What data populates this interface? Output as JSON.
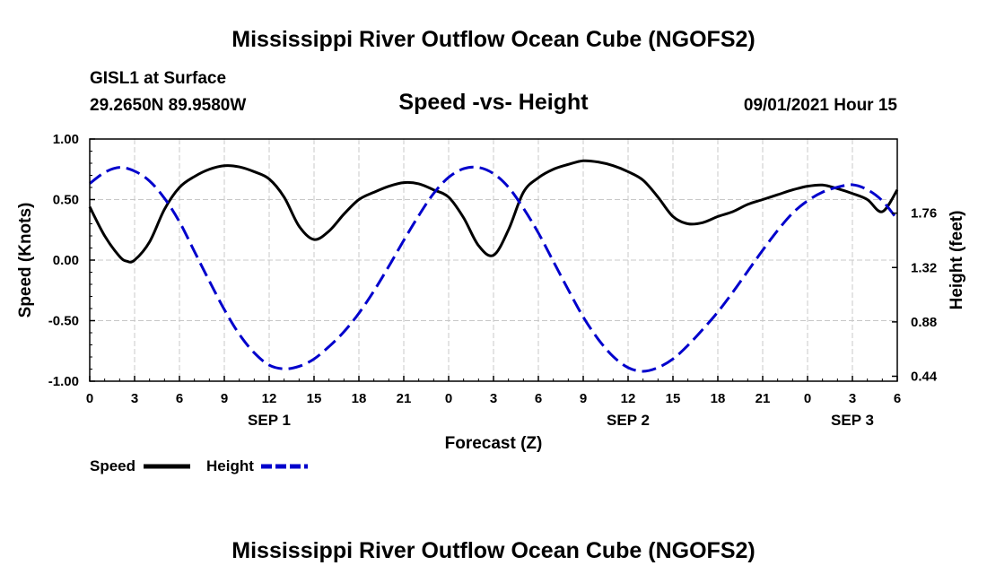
{
  "header": {
    "title": "Mississippi River Outflow Ocean Cube (NGOFS2)",
    "station": "GISL1 at Surface",
    "coords": "29.2650N  89.9580W",
    "subtitle": "Speed -vs- Height",
    "datetime": "09/01/2021 Hour 15",
    "footer_title": "Mississippi River Outflow Ocean Cube (NGOFS2)"
  },
  "colors": {
    "speed": "#000000",
    "height": "#0000cc",
    "grid": "#c8c8c8"
  },
  "chart_data": {
    "type": "line",
    "title": "Speed -vs- Height",
    "xlabel": "Forecast (Z)",
    "ylabel": "Speed (Knots)",
    "y2label": "Height (feet)",
    "xlim": [
      0,
      54
    ],
    "ylim": [
      -1.0,
      1.0
    ],
    "y2lim": [
      0.4,
      2.36
    ],
    "x_tick_values": [
      0,
      3,
      6,
      9,
      12,
      15,
      18,
      21,
      24,
      27,
      30,
      33,
      36,
      39,
      42,
      45,
      48,
      51,
      54
    ],
    "x_tick_labels": [
      "0",
      "3",
      "6",
      "9",
      "12",
      "15",
      "18",
      "21",
      "0",
      "3",
      "6",
      "9",
      "12",
      "15",
      "18",
      "21",
      "0",
      "3",
      "6"
    ],
    "date_labels": [
      {
        "x": 12,
        "label": "SEP 1"
      },
      {
        "x": 36,
        "label": "SEP 2"
      },
      {
        "x": 51,
        "label": "SEP 3"
      }
    ],
    "y_tick_labels": [
      "1.00",
      "0.50",
      "0.00",
      "-0.50",
      "-1.00"
    ],
    "y_tick_values": [
      1.0,
      0.5,
      0.0,
      -0.5,
      -1.0
    ],
    "y2_tick_labels": [
      "0.44",
      "0.88",
      "1.32",
      "1.76"
    ],
    "y2_tick_values": [
      0.44,
      0.88,
      1.32,
      1.76
    ],
    "legend": [
      {
        "name": "Speed",
        "style": "solid"
      },
      {
        "name": "Height",
        "style": "dashed"
      }
    ],
    "series": [
      {
        "name": "Speed",
        "axis": "left",
        "x": [
          0,
          1,
          2,
          2.5,
          3,
          4,
          5,
          6,
          7,
          8,
          9,
          10,
          11,
          12,
          13,
          14,
          15,
          16,
          17,
          18,
          19,
          20,
          21,
          22,
          23,
          24,
          25,
          26,
          27,
          28,
          29,
          30,
          31,
          32,
          33,
          34,
          35,
          36,
          37,
          38,
          39,
          40,
          41,
          42,
          43,
          44,
          45,
          46,
          47,
          48,
          49,
          50,
          51,
          52,
          53,
          54
        ],
        "values": [
          0.44,
          0.2,
          0.03,
          -0.01,
          0.0,
          0.15,
          0.42,
          0.6,
          0.69,
          0.75,
          0.78,
          0.77,
          0.73,
          0.67,
          0.52,
          0.28,
          0.17,
          0.24,
          0.38,
          0.5,
          0.56,
          0.61,
          0.64,
          0.63,
          0.58,
          0.52,
          0.35,
          0.12,
          0.04,
          0.25,
          0.56,
          0.68,
          0.75,
          0.79,
          0.82,
          0.81,
          0.78,
          0.73,
          0.66,
          0.52,
          0.36,
          0.3,
          0.31,
          0.36,
          0.4,
          0.46,
          0.5,
          0.54,
          0.58,
          0.61,
          0.62,
          0.59,
          0.55,
          0.5,
          0.4,
          0.58
        ]
      },
      {
        "name": "Height",
        "axis": "right",
        "x": [
          0,
          1,
          2,
          3,
          4,
          5,
          6,
          7,
          8,
          9,
          10,
          11,
          12,
          13,
          14,
          15,
          16,
          17,
          18,
          19,
          20,
          21,
          22,
          23,
          24,
          25,
          26,
          27,
          28,
          29,
          30,
          31,
          32,
          33,
          34,
          35,
          36,
          37,
          38,
          39,
          40,
          41,
          42,
          43,
          44,
          45,
          46,
          47,
          48,
          49,
          50,
          51,
          52,
          53,
          54
        ],
        "values": [
          2.0,
          2.09,
          2.13,
          2.1,
          2.02,
          1.88,
          1.69,
          1.45,
          1.21,
          0.98,
          0.78,
          0.63,
          0.53,
          0.5,
          0.52,
          0.58,
          0.68,
          0.8,
          0.95,
          1.13,
          1.33,
          1.54,
          1.74,
          1.92,
          2.05,
          2.12,
          2.13,
          2.08,
          1.97,
          1.8,
          1.6,
          1.37,
          1.14,
          0.92,
          0.74,
          0.6,
          0.51,
          0.48,
          0.51,
          0.58,
          0.69,
          0.82,
          0.96,
          1.12,
          1.29,
          1.46,
          1.62,
          1.76,
          1.86,
          1.93,
          1.97,
          1.99,
          1.95,
          1.86,
          1.71
        ]
      }
    ]
  }
}
